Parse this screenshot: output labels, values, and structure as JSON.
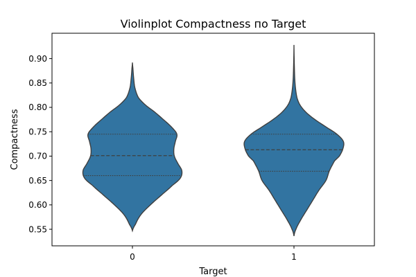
{
  "chart_data": {
    "type": "violin",
    "title": "Violinplot Compactness по Target",
    "xlabel": "Target",
    "ylabel": "Compactness",
    "categories": [
      "0",
      "1"
    ],
    "ylim": [
      0.516,
      0.952
    ],
    "yticks": [
      "0.55",
      "0.60",
      "0.65",
      "0.70",
      "0.75",
      "0.80",
      "0.85",
      "0.90"
    ],
    "fill_color": "#3274a1",
    "edge_color": "#3f3f3f",
    "violins": [
      {
        "category": "0",
        "min": 0.547,
        "max": 0.892,
        "quartiles": [
          0.66,
          0.701,
          0.745
        ],
        "profile": [
          [
            0.547,
            0.0
          ],
          [
            0.56,
            0.06
          ],
          [
            0.58,
            0.17
          ],
          [
            0.6,
            0.36
          ],
          [
            0.62,
            0.58
          ],
          [
            0.64,
            0.8
          ],
          [
            0.655,
            0.96
          ],
          [
            0.67,
            0.99
          ],
          [
            0.685,
            0.91
          ],
          [
            0.7,
            0.84
          ],
          [
            0.715,
            0.83
          ],
          [
            0.73,
            0.86
          ],
          [
            0.745,
            0.89
          ],
          [
            0.76,
            0.78
          ],
          [
            0.775,
            0.62
          ],
          [
            0.79,
            0.45
          ],
          [
            0.805,
            0.26
          ],
          [
            0.82,
            0.12
          ],
          [
            0.84,
            0.05
          ],
          [
            0.86,
            0.025
          ],
          [
            0.88,
            0.01
          ],
          [
            0.892,
            0.0
          ]
        ]
      },
      {
        "category": "1",
        "min": 0.536,
        "max": 0.928,
        "quartiles": [
          0.669,
          0.713,
          0.745
        ],
        "profile": [
          [
            0.536,
            0.0
          ],
          [
            0.55,
            0.04
          ],
          [
            0.57,
            0.14
          ],
          [
            0.59,
            0.26
          ],
          [
            0.61,
            0.38
          ],
          [
            0.63,
            0.5
          ],
          [
            0.65,
            0.64
          ],
          [
            0.67,
            0.71
          ],
          [
            0.69,
            0.81
          ],
          [
            0.7,
            0.91
          ],
          [
            0.715,
            0.98
          ],
          [
            0.73,
            0.99
          ],
          [
            0.745,
            0.86
          ],
          [
            0.76,
            0.64
          ],
          [
            0.775,
            0.42
          ],
          [
            0.79,
            0.24
          ],
          [
            0.805,
            0.12
          ],
          [
            0.82,
            0.06
          ],
          [
            0.84,
            0.03
          ],
          [
            0.86,
            0.015
          ],
          [
            0.89,
            0.006
          ],
          [
            0.928,
            0.0
          ]
        ]
      }
    ]
  }
}
